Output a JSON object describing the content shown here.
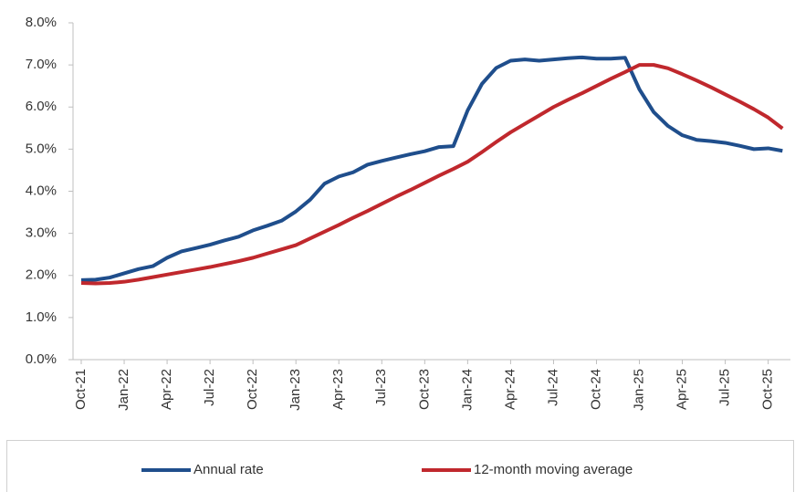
{
  "chart_data": {
    "type": "line",
    "categories": [
      "Oct-21",
      null,
      null,
      "Jan-22",
      null,
      null,
      "Apr-22",
      null,
      null,
      "Jul-22",
      null,
      null,
      "Oct-22",
      null,
      null,
      "Jan-23",
      null,
      null,
      "Apr-23",
      null,
      null,
      "Jul-23",
      null,
      null,
      "Oct-23",
      null,
      null,
      "Jan-24",
      null,
      null,
      "Apr-24",
      null,
      null,
      "Jul-24",
      null,
      null,
      "Oct-24",
      null,
      null,
      "Jan-25",
      null,
      null,
      "Apr-25",
      null,
      null,
      "Jul-25",
      null,
      null,
      "Oct-25",
      null
    ],
    "series": [
      {
        "name": "Annual rate",
        "color": "#1f4e8c",
        "values": [
          1.89,
          1.9,
          1.95,
          2.05,
          2.15,
          2.22,
          2.42,
          2.57,
          2.65,
          2.73,
          2.83,
          2.92,
          3.07,
          3.18,
          3.3,
          3.52,
          3.8,
          4.18,
          4.35,
          4.45,
          4.63,
          4.72,
          4.8,
          4.88,
          4.95,
          5.05,
          5.07,
          5.92,
          6.55,
          6.93,
          7.1,
          7.13,
          7.1,
          7.13,
          7.16,
          7.18,
          7.15,
          7.15,
          7.17,
          6.42,
          5.88,
          5.55,
          5.33,
          5.22,
          5.19,
          5.15,
          5.08,
          5.0,
          5.02,
          4.96
        ]
      },
      {
        "name": "12-month moving average",
        "color": "#c0282d",
        "values": [
          1.82,
          1.81,
          1.82,
          1.85,
          1.9,
          1.96,
          2.02,
          2.08,
          2.14,
          2.2,
          2.27,
          2.34,
          2.42,
          2.52,
          2.62,
          2.72,
          2.88,
          3.04,
          3.2,
          3.37,
          3.53,
          3.7,
          3.87,
          4.03,
          4.2,
          4.37,
          4.53,
          4.7,
          4.93,
          5.17,
          5.4,
          5.6,
          5.8,
          6.0,
          6.17,
          6.33,
          6.5,
          6.67,
          6.83,
          7.0,
          7.0,
          6.92,
          6.78,
          6.63,
          6.47,
          6.3,
          6.13,
          5.95,
          5.75,
          5.49
        ]
      }
    ],
    "ylim": [
      0,
      8
    ],
    "yticks": [
      {
        "value": 0,
        "label": "0.0%"
      },
      {
        "value": 1,
        "label": "1.0%"
      },
      {
        "value": 2,
        "label": "2.0%"
      },
      {
        "value": 3,
        "label": "3.0%"
      },
      {
        "value": 4,
        "label": "4.0%"
      },
      {
        "value": 5,
        "label": "5.0%"
      },
      {
        "value": 6,
        "label": "6.0%"
      },
      {
        "value": 7,
        "label": "7.0%"
      },
      {
        "value": 8,
        "label": "8.0%"
      }
    ],
    "grid": false,
    "legend": "bottom"
  }
}
